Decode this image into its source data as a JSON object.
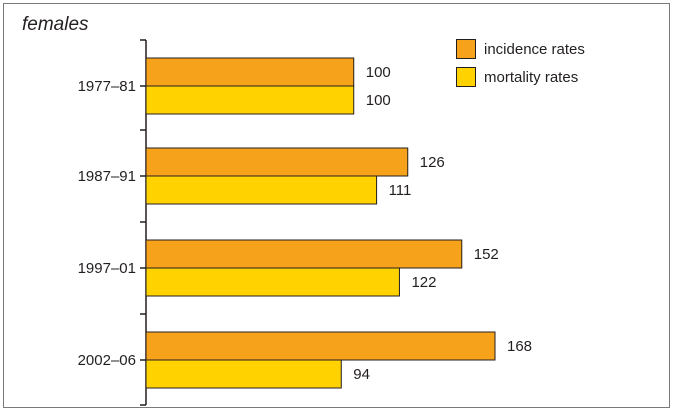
{
  "chart_data": {
    "type": "bar",
    "orientation": "horizontal",
    "title": "females",
    "categories": [
      "1977–81",
      "1987–91",
      "1997–01",
      "2002–06"
    ],
    "series": [
      {
        "name": "incidence rates",
        "color": "#f7a21b",
        "values": [
          100,
          126,
          152,
          168
        ]
      },
      {
        "name": "mortality rates",
        "color": "#ffd200",
        "values": [
          100,
          111,
          122,
          94
        ]
      }
    ],
    "xlim": [
      0,
      168
    ],
    "grid": false,
    "legend_position": "top-right"
  }
}
